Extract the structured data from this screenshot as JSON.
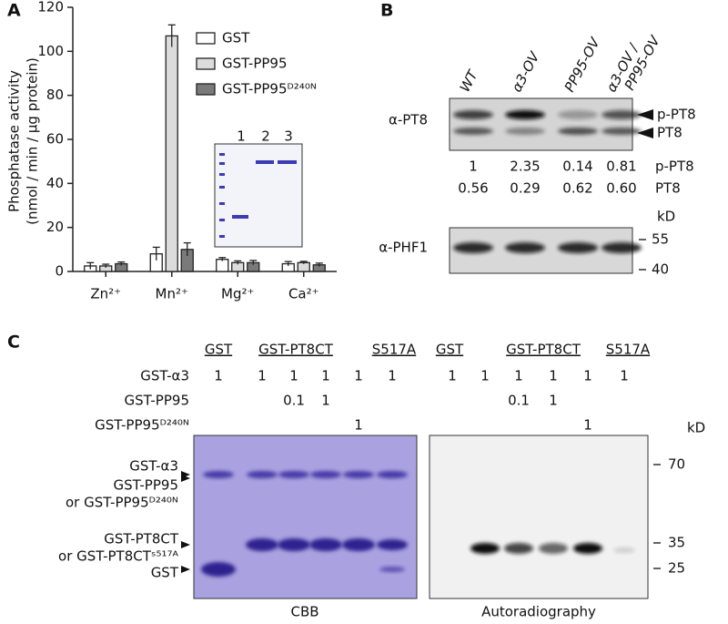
{
  "chart_data": {
    "type": "bar",
    "panel_label": "A",
    "y_label": [
      "Phosphatase activity",
      "(nmol / min / µg protein)"
    ],
    "categories": [
      "Zn²⁺",
      "Mn²⁺",
      "Mg²⁺",
      "Ca²⁺"
    ],
    "series": [
      {
        "name": "GST",
        "color": "#ffffff",
        "values": [
          2.5,
          8,
          5.5,
          3.5
        ],
        "errors": [
          1.5,
          3,
          0.8,
          1
        ]
      },
      {
        "name": "GST-PP95",
        "color": "#dcdcdc",
        "values": [
          2.5,
          107,
          4,
          4
        ],
        "errors": [
          0.8,
          5,
          0.8,
          0.6
        ]
      },
      {
        "name": "GST-PP95ᴰ²⁴⁰ᴺ",
        "color": "#7a7a7a",
        "values": [
          3.5,
          10,
          4,
          3
        ],
        "errors": [
          0.8,
          3,
          1,
          0.8
        ]
      }
    ],
    "ylim": [
      0,
      120
    ],
    "yticks": [
      0,
      20,
      40,
      60,
      80,
      100,
      120
    ]
  },
  "panel_a_inset": {
    "lanes": [
      "1",
      "2",
      "3"
    ]
  },
  "panel_b": {
    "label": "B",
    "lanes": [
      "WT",
      "α3-OV",
      "PP95-OV",
      [
        "α3-OV /",
        "PP95-OV"
      ]
    ],
    "blots": [
      {
        "antibody": "α-PT8",
        "bands": [
          "p-PT8",
          "PT8"
        ]
      },
      {
        "antibody": "α-PHF1"
      }
    ],
    "quant": [
      {
        "values": [
          "1",
          "2.35",
          "0.14",
          "0.81"
        ],
        "label": "p-PT8"
      },
      {
        "values": [
          "0.56",
          "0.29",
          "0.62",
          "0.60"
        ],
        "label": "PT8"
      }
    ],
    "kd_label": "kD",
    "markers": [
      "55",
      "40"
    ]
  },
  "panel_c": {
    "label": "C",
    "gels": [
      {
        "groups": [
          "GST",
          "GST-PT8CT",
          "S517A"
        ],
        "caption": "CBB"
      },
      {
        "groups": [
          "GST",
          "GST-PT8CT",
          "S517A"
        ],
        "caption": "Autoradiography"
      }
    ],
    "rows": [
      {
        "label": "GST-α3",
        "values": [
          "1",
          "1",
          "1",
          "1",
          "1",
          "1"
        ]
      },
      {
        "label": "GST-PP95",
        "values": [
          null,
          null,
          "0.1",
          "1",
          null,
          null
        ]
      },
      {
        "label": "GST-PP95ᴰ²⁴⁰ᴺ",
        "values": [
          null,
          null,
          null,
          null,
          "1",
          null
        ]
      }
    ],
    "band_labels": [
      [
        "GST-α3",
        "GST-PP95",
        "or GST-PP95ᴰ²⁴⁰ᴺ"
      ],
      [
        "GST-PT8CT",
        "or GST-PT8CTˢ⁵¹⁷ᴬ"
      ],
      [
        "GST"
      ]
    ],
    "kd_label": "kD",
    "markers": [
      "70",
      "35",
      "25"
    ]
  }
}
